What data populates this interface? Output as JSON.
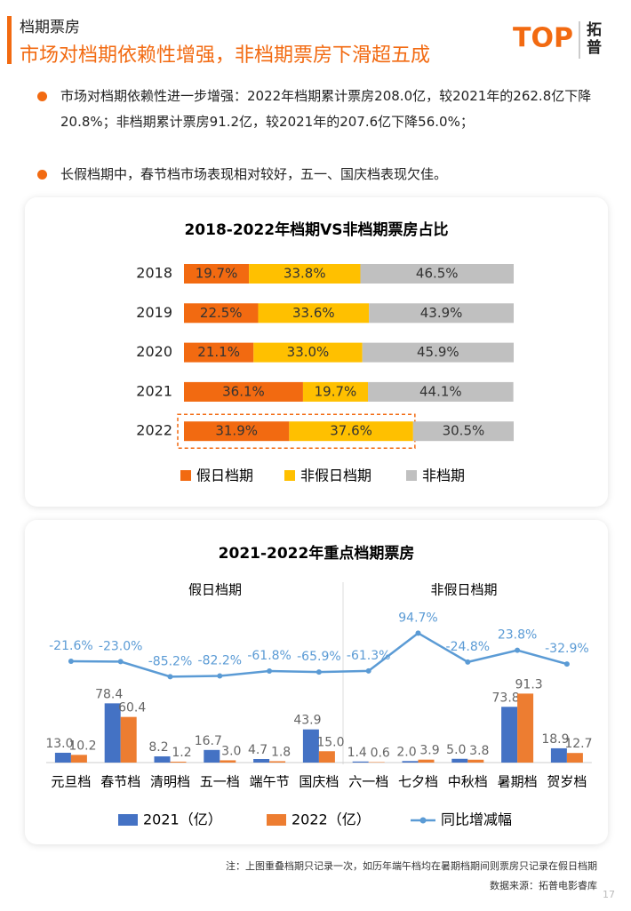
{
  "header": {
    "section": "档期票房",
    "title": "市场对档期依赖性增强，非档期票房下滑超五成",
    "logo": "拓普"
  },
  "bullets": [
    "市场对档期依赖性进一步增强：2022年档期累计票房208.0亿，较2021年的262.8亿下降20.8%；非档期累计票房91.2亿，较2021年的207.6亿下降56.0%；",
    "长假档期中，春节档市场表现相对较好，五一、国庆档表现欠佳。"
  ],
  "chart_data": [
    {
      "type": "stacked-bar",
      "title": "2018-2022年档期VS非档期票房占比",
      "categories": [
        "2018",
        "2019",
        "2020",
        "2021",
        "2022"
      ],
      "xlim": [
        0,
        100
      ],
      "series": [
        {
          "name": "假日档期",
          "color": "#f26a11",
          "values": [
            19.7,
            22.5,
            21.1,
            36.1,
            31.9
          ],
          "value_labels": [
            "19.7%",
            "22.5%",
            "21.1%",
            "36.1%",
            "31.9%"
          ]
        },
        {
          "name": "非假日档期",
          "color": "#ffc000",
          "values": [
            33.8,
            33.6,
            33.0,
            19.7,
            37.6
          ],
          "value_labels": [
            "33.8%",
            "33.6%",
            "33.0%",
            "19.7%",
            "37.6%"
          ]
        },
        {
          "name": "非档期",
          "color": "#c0c0c0",
          "values": [
            46.5,
            43.9,
            45.9,
            44.1,
            30.5
          ],
          "value_labels": [
            "46.5%",
            "43.9%",
            "45.9%",
            "44.1%",
            "30.5%"
          ]
        }
      ]
    },
    {
      "type": "bar-line",
      "title": "2021-2022年重点档期票房",
      "group_labels": [
        "假日档期",
        "非假日档期"
      ],
      "categories": [
        "元旦档",
        "春节档",
        "清明档",
        "五一档",
        "端午节",
        "国庆档",
        "六一档",
        "七夕档",
        "中秋档",
        "暑期档",
        "贺岁档"
      ],
      "ylim": [
        0,
        100
      ],
      "y2lim": [
        -150,
        250
      ],
      "series": [
        {
          "name": "2021（亿）",
          "color": "#4472c4",
          "values": [
            13.0,
            78.4,
            8.2,
            16.7,
            4.7,
            43.9,
            1.4,
            2.0,
            5.0,
            73.8,
            18.9
          ],
          "value_labels": [
            "13.0",
            "78.4",
            "8.2",
            "16.7",
            "4.7",
            "43.9",
            "1.4",
            "2.0",
            "5.0",
            "73.8",
            "18.9"
          ]
        },
        {
          "name": "2022（亿）",
          "color": "#ed7d31",
          "values": [
            10.2,
            60.4,
            1.2,
            3.0,
            1.8,
            15.0,
            0.6,
            3.9,
            3.8,
            91.3,
            12.7
          ],
          "value_labels": [
            "10.2",
            "60.4",
            "1.2",
            "3.0",
            "1.8",
            "15.0",
            "0.6",
            "3.9",
            "3.8",
            "91.3",
            "12.7"
          ]
        },
        {
          "name": "同比增减幅",
          "color": "#5b9bd5",
          "axis": "y2",
          "values": [
            -21.6,
            -23.0,
            -85.2,
            -82.2,
            -61.8,
            -65.9,
            -61.3,
            94.7,
            -24.8,
            23.8,
            -32.9
          ],
          "value_labels": [
            "-21.6%",
            "-23.0%",
            "-85.2%",
            "-82.2%",
            "-61.8%",
            "-65.9%",
            "-61.3%",
            "94.7%",
            "-24.8%",
            "23.8%",
            "-32.9%"
          ]
        }
      ]
    }
  ],
  "footer": {
    "note": "注：上图重叠档期只记录一次，如历年端午档均在暑期档期间则票房只记录在假日档期",
    "source": "数据来源：拓普电影睿库",
    "page": "17"
  }
}
